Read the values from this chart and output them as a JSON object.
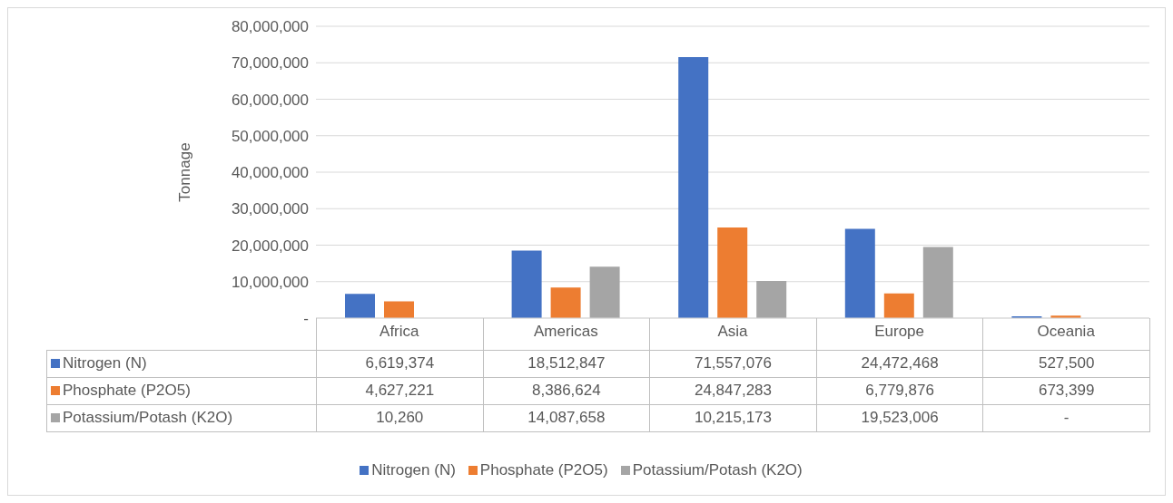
{
  "chart_data": {
    "type": "bar",
    "ylabel": "Tonnage",
    "categories": [
      "Africa",
      "Americas",
      "Asia",
      "Europe",
      "Oceania"
    ],
    "series": [
      {
        "name": "Nitrogen (N)",
        "color": "#4472c4",
        "values": [
          6619374,
          18512847,
          71557076,
          24472468,
          527500
        ],
        "value_labels": [
          "6,619,374",
          "18,512,847",
          "71,557,076",
          "24,472,468",
          "527,500"
        ]
      },
      {
        "name": "Phosphate (P2O5)",
        "color": "#ed7d31",
        "values": [
          4627221,
          8386624,
          24847283,
          6779876,
          673399
        ],
        "value_labels": [
          "4,627,221",
          "8,386,624",
          "24,847,283",
          "6,779,876",
          "673,399"
        ]
      },
      {
        "name": "Potassium/Potash (K2O)",
        "color": "#a5a5a5",
        "values": [
          10260,
          14087658,
          10215173,
          19523006,
          null
        ],
        "value_labels": [
          "10,260",
          "14,087,658",
          "10,215,173",
          "19,523,006",
          "-"
        ]
      }
    ],
    "ylim": [
      0,
      80000000
    ],
    "yticks": [
      {
        "value": 0,
        "label": "-"
      },
      {
        "value": 10000000,
        "label": "10,000,000"
      },
      {
        "value": 20000000,
        "label": "20,000,000"
      },
      {
        "value": 30000000,
        "label": "30,000,000"
      },
      {
        "value": 40000000,
        "label": "40,000,000"
      },
      {
        "value": 50000000,
        "label": "50,000,000"
      },
      {
        "value": 60000000,
        "label": "60,000,000"
      },
      {
        "value": 70000000,
        "label": "70,000,000"
      },
      {
        "value": 80000000,
        "label": "80,000,000"
      }
    ],
    "grid": "y",
    "legend": "bottom"
  }
}
